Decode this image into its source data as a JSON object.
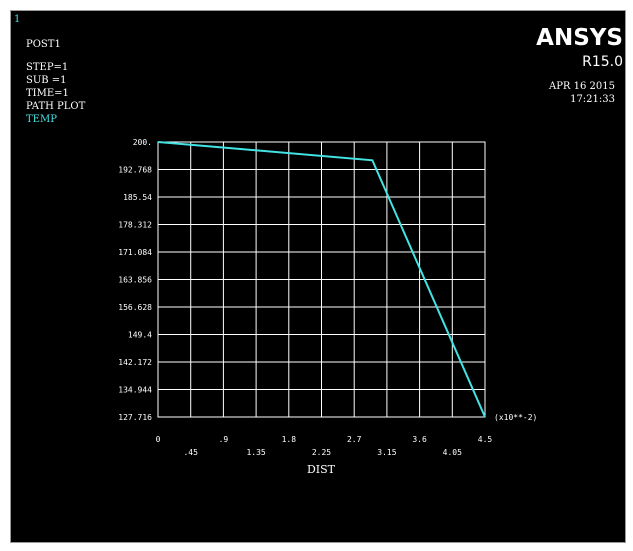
{
  "window_number": "1",
  "title": "POST1",
  "step": "STEP=1",
  "sub": "SUB =1",
  "time": "TIME=1",
  "plot_type": "PATH PLOT",
  "series_label": "TEMP",
  "brand": "ANSYS",
  "version": "R15.0",
  "date": "APR 16 2015",
  "clock": "17:21:33",
  "colors": {
    "background": "#000000",
    "line": "#44e3e3",
    "grid": "#ffffff",
    "text": "#ffffff"
  },
  "chart_data": {
    "type": "line",
    "title": "",
    "xlabel": "DIST",
    "ylabel": "",
    "x_multiplier": "(x10**-2)",
    "xlim": [
      0,
      4.5
    ],
    "ylim": [
      127.716,
      200
    ],
    "x_ticks_top": [
      "0",
      ".9",
      "1.8",
      "2.7",
      "3.6",
      "4.5"
    ],
    "x_ticks_bottom": [
      ".45",
      "1.35",
      "2.25",
      "3.15",
      "4.05"
    ],
    "x_tick_values_top": [
      0,
      0.9,
      1.8,
      2.7,
      3.6,
      4.5
    ],
    "x_tick_values_bottom": [
      0.45,
      1.35,
      2.25,
      3.15,
      4.05
    ],
    "y_ticks": [
      "200.",
      "192.768",
      "185.54",
      "178.312",
      "171.084",
      "163.856",
      "156.628",
      "149.4",
      "142.172",
      "134.944",
      "127.716"
    ],
    "y_tick_values": [
      200,
      192.768,
      185.54,
      178.312,
      171.084,
      163.856,
      156.628,
      149.4,
      142.172,
      134.944,
      127.716
    ],
    "grid": true,
    "series": [
      {
        "name": "TEMP",
        "x": [
          0,
          2.95,
          4.5
        ],
        "y": [
          200,
          195.2,
          127.716
        ]
      }
    ]
  }
}
